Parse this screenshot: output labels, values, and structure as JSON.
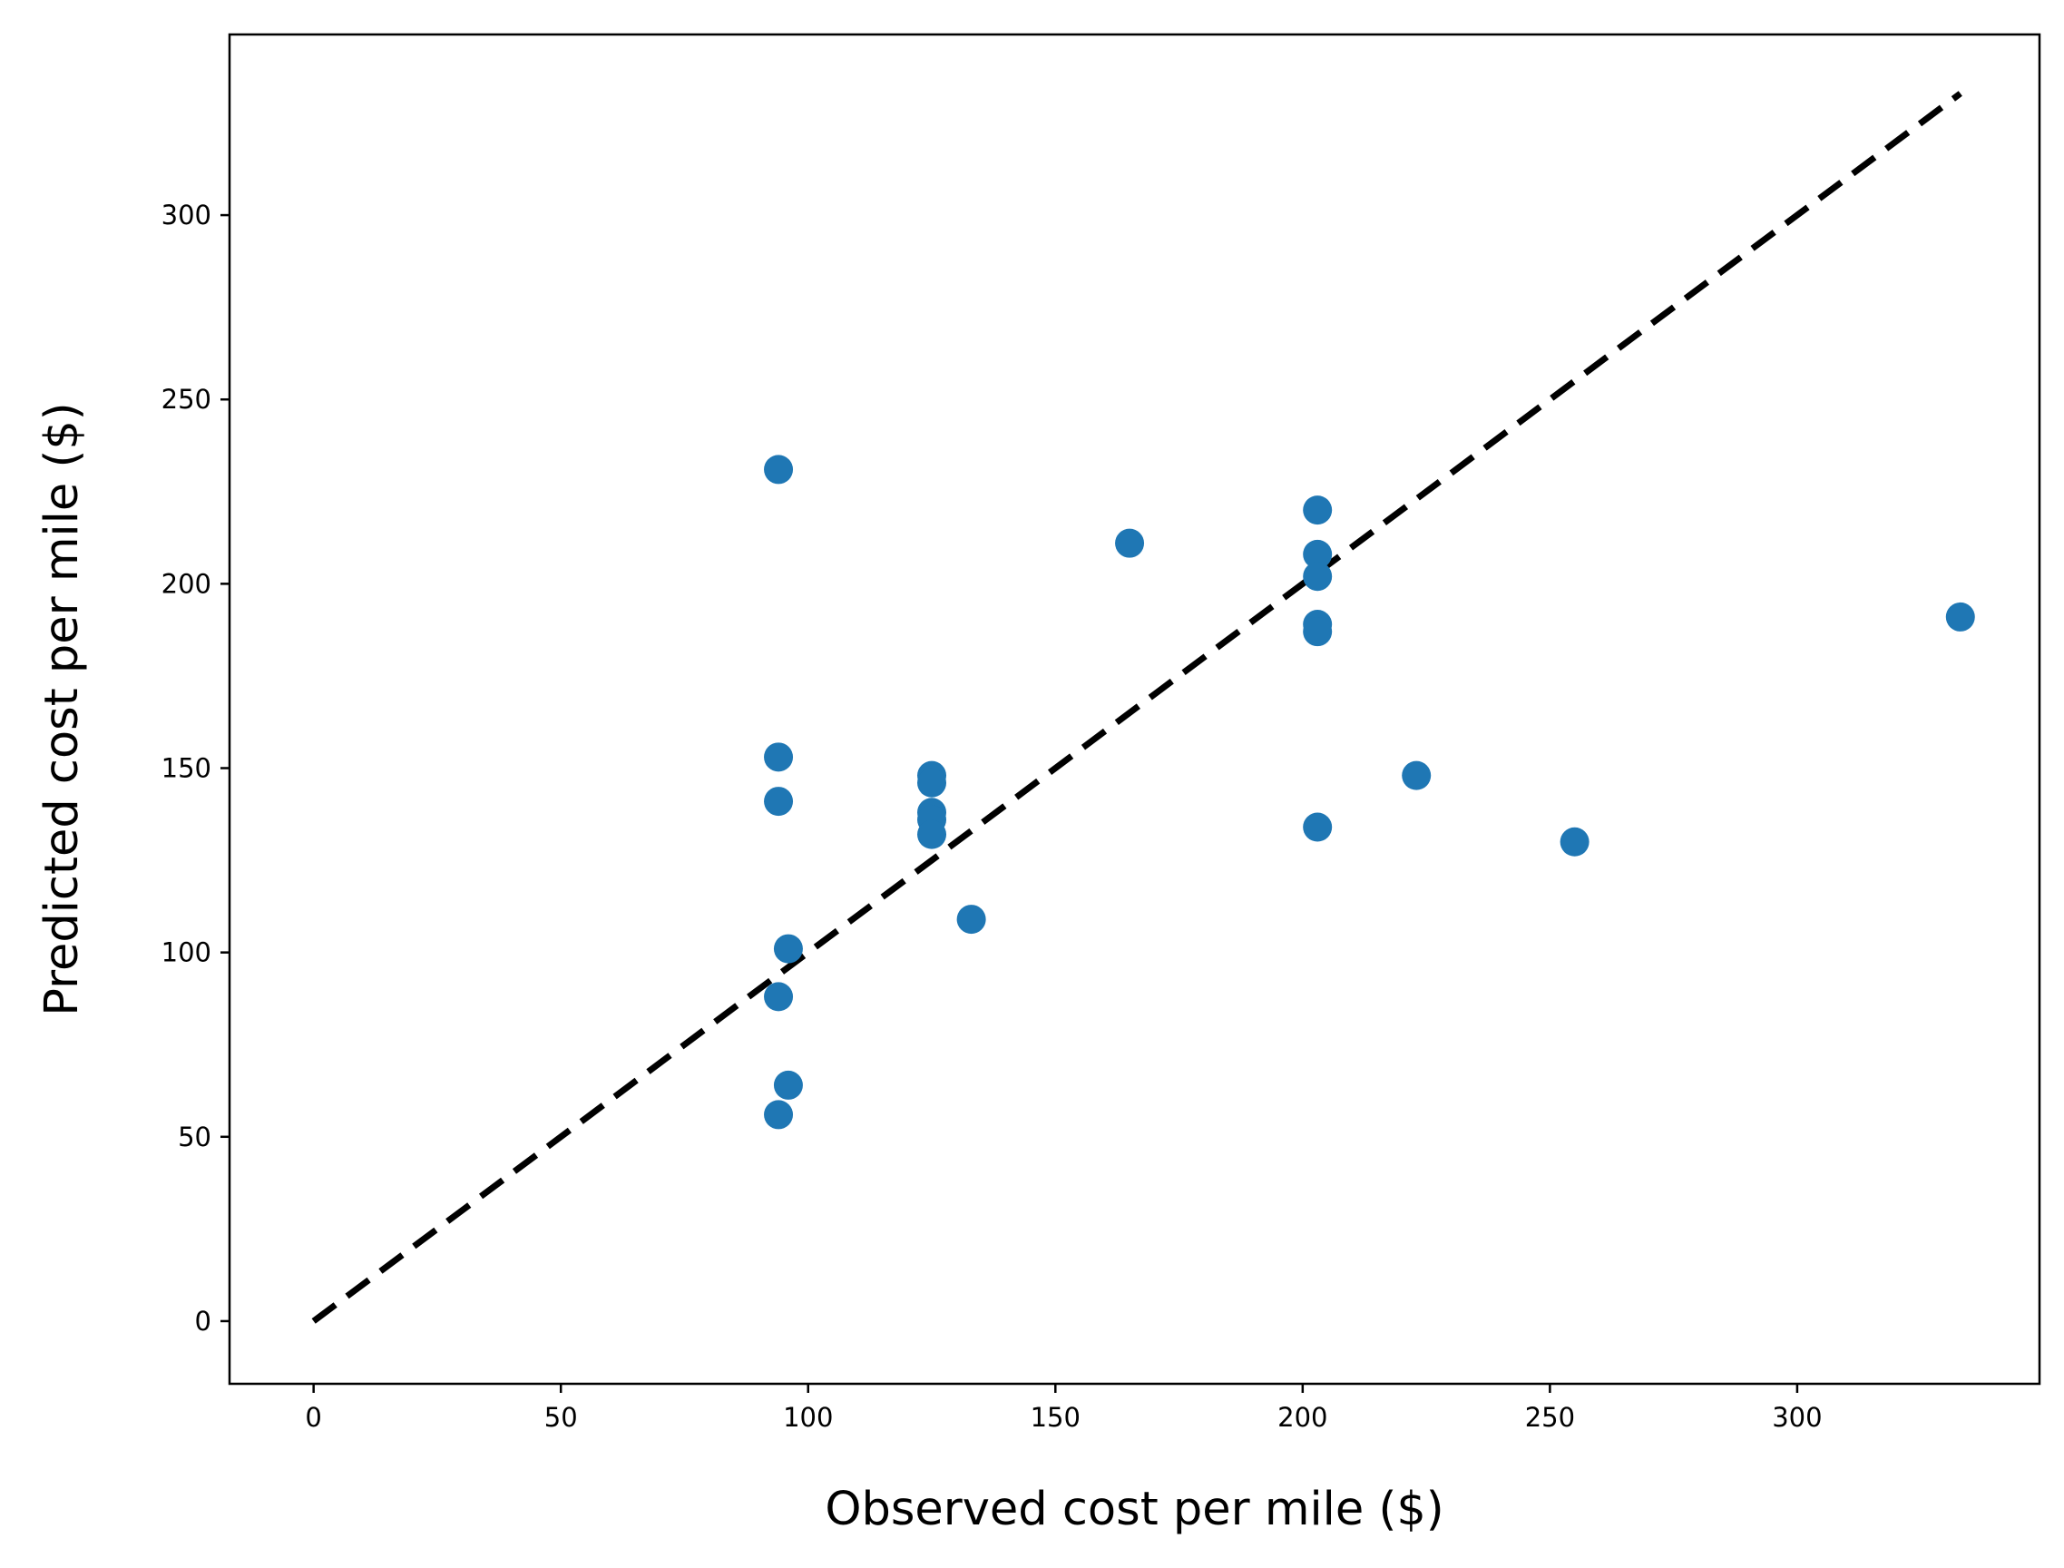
{
  "chart_data": {
    "type": "scatter",
    "title": "",
    "xlabel": "Observed cost per mile ($)",
    "ylabel": "Predicted cost per mile ($)",
    "xlim": [
      -17,
      349
    ],
    "ylim": [
      -17,
      349
    ],
    "xticks": [
      0,
      50,
      100,
      150,
      200,
      250,
      300
    ],
    "yticks": [
      0,
      50,
      100,
      150,
      200,
      250,
      300
    ],
    "xtick_labels": [
      "0",
      "50",
      "100",
      "150",
      "200",
      "250",
      "300"
    ],
    "ytick_labels": [
      "0",
      "50",
      "100",
      "150",
      "200",
      "250",
      "300"
    ],
    "grid": false,
    "legend": "none",
    "series": [
      {
        "points": [
          {
            "x": 94,
            "y": 231
          },
          {
            "x": 165,
            "y": 211
          },
          {
            "x": 203,
            "y": 220
          },
          {
            "x": 203,
            "y": 208
          },
          {
            "x": 203,
            "y": 202
          },
          {
            "x": 203,
            "y": 189
          },
          {
            "x": 203,
            "y": 187
          },
          {
            "x": 333,
            "y": 191
          },
          {
            "x": 94,
            "y": 153
          },
          {
            "x": 94,
            "y": 141
          },
          {
            "x": 125,
            "y": 148
          },
          {
            "x": 125,
            "y": 146
          },
          {
            "x": 125,
            "y": 138
          },
          {
            "x": 125,
            "y": 136
          },
          {
            "x": 125,
            "y": 132
          },
          {
            "x": 223,
            "y": 148
          },
          {
            "x": 203,
            "y": 134
          },
          {
            "x": 255,
            "y": 130
          },
          {
            "x": 133,
            "y": 109
          },
          {
            "x": 96,
            "y": 101
          },
          {
            "x": 94,
            "y": 88
          },
          {
            "x": 96,
            "y": 64
          },
          {
            "x": 94,
            "y": 56
          }
        ]
      }
    ],
    "reference_line": {
      "x": [
        0,
        333
      ],
      "y": [
        0,
        333
      ],
      "style": "dashed"
    },
    "colors": {
      "points": "#1f77b4",
      "reference_line": "#000000",
      "axes": "#000000"
    }
  }
}
